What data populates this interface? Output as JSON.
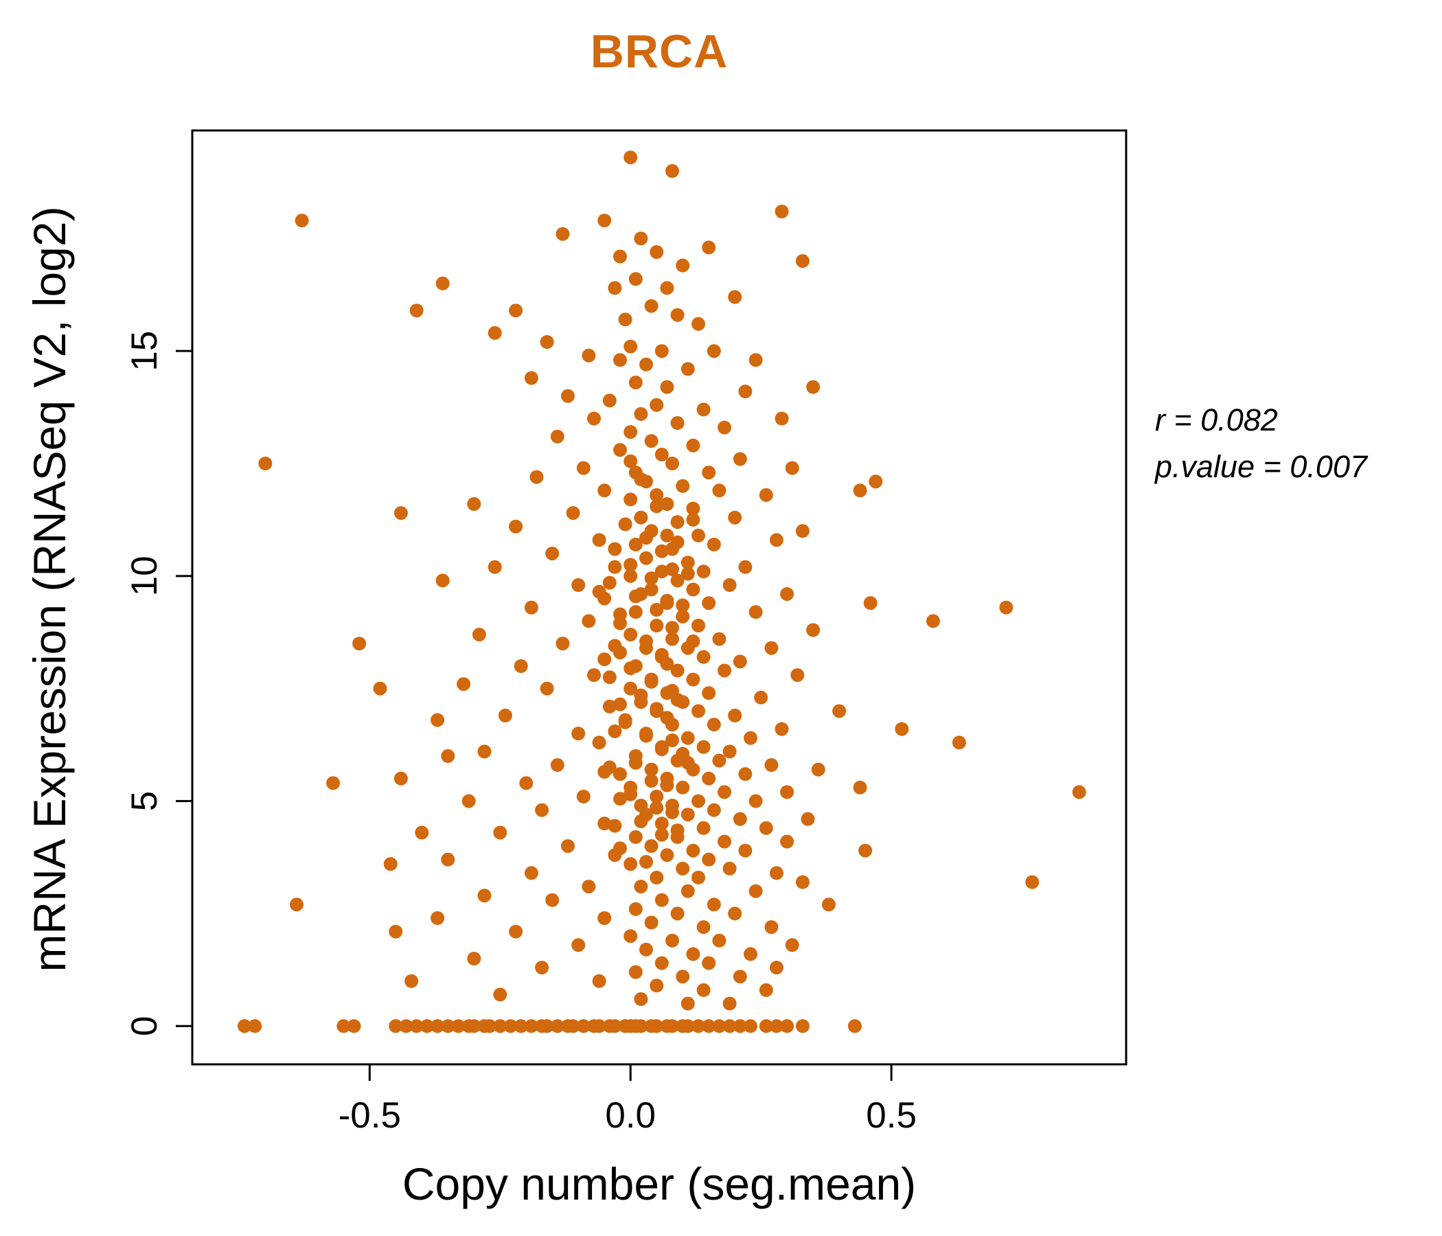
{
  "colors": {
    "accent": "#D2690E",
    "text": "#000000",
    "axis": "#000000"
  },
  "stats": {
    "line1": "r = 0.082",
    "line2": "p.value = 0.007"
  },
  "chart_data": {
    "type": "scatter",
    "title": "BRCA",
    "xlabel": "Copy number (seg.mean)",
    "ylabel": "mRNA Expression (RNASeq V2, log2)",
    "xlim": [
      -0.84,
      0.95
    ],
    "ylim": [
      -0.85,
      19.9
    ],
    "x_ticks": [
      -0.5,
      0.0,
      0.5
    ],
    "x_tick_labels": [
      "-0.5",
      "0.0",
      "0.5"
    ],
    "y_ticks": [
      0,
      5,
      10,
      15
    ],
    "y_tick_labels": [
      "0",
      "5",
      "10",
      "15"
    ],
    "grid": false,
    "legend": "none",
    "point_color": "#D2690E",
    "point_radius_px": 10,
    "r": 0.082,
    "p_value": 0.007,
    "annotations": [
      "r = 0.082",
      "p.value = 0.007"
    ],
    "points": [
      [
        0.0,
        19.3
      ],
      [
        0.08,
        19.0
      ],
      [
        -0.63,
        17.9
      ],
      [
        0.29,
        18.1
      ],
      [
        -0.05,
        17.9
      ],
      [
        0.02,
        17.5
      ],
      [
        -0.13,
        17.6
      ],
      [
        0.15,
        17.3
      ],
      [
        0.33,
        17.0
      ],
      [
        -0.02,
        17.1
      ],
      [
        0.05,
        17.2
      ],
      [
        0.1,
        16.9
      ],
      [
        -0.36,
        16.5
      ],
      [
        0.01,
        16.6
      ],
      [
        -0.03,
        16.4
      ],
      [
        0.07,
        16.4
      ],
      [
        0.2,
        16.2
      ],
      [
        -0.41,
        15.9
      ],
      [
        -0.22,
        15.9
      ],
      [
        0.04,
        16.0
      ],
      [
        0.09,
        15.8
      ],
      [
        -0.01,
        15.7
      ],
      [
        0.13,
        15.6
      ],
      [
        -0.26,
        15.4
      ],
      [
        -0.16,
        15.2
      ],
      [
        0.0,
        15.1
      ],
      [
        0.06,
        15.0
      ],
      [
        0.16,
        15.0
      ],
      [
        0.24,
        14.8
      ],
      [
        -0.08,
        14.9
      ],
      [
        -0.02,
        14.8
      ],
      [
        0.03,
        14.7
      ],
      [
        0.11,
        14.6
      ],
      [
        -0.19,
        14.4
      ],
      [
        0.01,
        14.3
      ],
      [
        0.07,
        14.2
      ],
      [
        0.22,
        14.1
      ],
      [
        0.35,
        14.2
      ],
      [
        -0.12,
        14.0
      ],
      [
        -0.04,
        13.9
      ],
      [
        0.05,
        13.8
      ],
      [
        0.14,
        13.7
      ],
      [
        0.02,
        13.6
      ],
      [
        -0.07,
        13.5
      ],
      [
        0.09,
        13.4
      ],
      [
        0.18,
        13.3
      ],
      [
        0.29,
        13.5
      ],
      [
        0.0,
        13.2
      ],
      [
        -0.14,
        13.1
      ],
      [
        0.04,
        13.0
      ],
      [
        0.12,
        12.9
      ],
      [
        -0.7,
        12.5
      ],
      [
        -0.02,
        12.8
      ],
      [
        0.06,
        12.7
      ],
      [
        0.21,
        12.6
      ],
      [
        0.08,
        12.5
      ],
      [
        -0.09,
        12.4
      ],
      [
        0.01,
        12.3
      ],
      [
        0.15,
        12.3
      ],
      [
        0.31,
        12.4
      ],
      [
        -0.18,
        12.2
      ],
      [
        0.03,
        12.1
      ],
      [
        0.1,
        12.0
      ],
      [
        -0.05,
        11.9
      ],
      [
        0.05,
        11.8
      ],
      [
        0.17,
        11.9
      ],
      [
        0.26,
        11.8
      ],
      [
        -0.3,
        11.6
      ],
      [
        -0.44,
        11.4
      ],
      [
        0.0,
        11.7
      ],
      [
        0.07,
        11.6
      ],
      [
        0.12,
        11.5
      ],
      [
        -0.11,
        11.4
      ],
      [
        0.02,
        11.3
      ],
      [
        0.09,
        11.2
      ],
      [
        0.2,
        11.3
      ],
      [
        0.44,
        11.9
      ],
      [
        0.47,
        12.1
      ],
      [
        -0.22,
        11.1
      ],
      [
        0.04,
        11.0
      ],
      [
        0.13,
        10.9
      ],
      [
        -0.06,
        10.8
      ],
      [
        0.01,
        10.7
      ],
      [
        0.08,
        10.6
      ],
      [
        0.16,
        10.7
      ],
      [
        0.28,
        10.8
      ],
      [
        0.33,
        11.0
      ],
      [
        -0.15,
        10.5
      ],
      [
        0.03,
        10.4
      ],
      [
        0.11,
        10.3
      ],
      [
        -0.26,
        10.2
      ],
      [
        -0.03,
        10.2
      ],
      [
        0.06,
        10.1
      ],
      [
        0.14,
        10.1
      ],
      [
        0.22,
        10.2
      ],
      [
        0.0,
        10.0
      ],
      [
        0.09,
        9.9
      ],
      [
        -0.36,
        9.9
      ],
      [
        -0.1,
        9.8
      ],
      [
        0.04,
        9.7
      ],
      [
        0.12,
        9.7
      ],
      [
        0.19,
        9.8
      ],
      [
        0.3,
        9.6
      ],
      [
        0.02,
        9.6
      ],
      [
        -0.05,
        9.5
      ],
      [
        0.07,
        9.4
      ],
      [
        0.15,
        9.4
      ],
      [
        0.46,
        9.4
      ],
      [
        0.58,
        9.0
      ],
      [
        0.72,
        9.3
      ],
      [
        -0.19,
        9.3
      ],
      [
        0.01,
        9.2
      ],
      [
        0.1,
        9.1
      ],
      [
        0.24,
        9.2
      ],
      [
        -0.08,
        9.0
      ],
      [
        0.05,
        8.9
      ],
      [
        0.13,
        8.9
      ],
      [
        0.35,
        8.8
      ],
      [
        -0.29,
        8.7
      ],
      [
        0.0,
        8.7
      ],
      [
        0.08,
        8.6
      ],
      [
        0.17,
        8.6
      ],
      [
        -0.13,
        8.5
      ],
      [
        0.03,
        8.4
      ],
      [
        0.11,
        8.4
      ],
      [
        0.27,
        8.4
      ],
      [
        -0.52,
        8.5
      ],
      [
        -0.48,
        7.5
      ],
      [
        -0.02,
        8.3
      ],
      [
        0.06,
        8.2
      ],
      [
        0.14,
        8.2
      ],
      [
        0.21,
        8.1
      ],
      [
        -0.21,
        8.0
      ],
      [
        0.01,
        8.0
      ],
      [
        0.09,
        7.9
      ],
      [
        0.18,
        7.9
      ],
      [
        0.32,
        7.8
      ],
      [
        -0.07,
        7.8
      ],
      [
        0.04,
        7.7
      ],
      [
        0.12,
        7.7
      ],
      [
        -0.32,
        7.6
      ],
      [
        -0.16,
        7.5
      ],
      [
        0.0,
        7.5
      ],
      [
        0.07,
        7.4
      ],
      [
        0.15,
        7.4
      ],
      [
        0.25,
        7.3
      ],
      [
        0.02,
        7.2
      ],
      [
        0.1,
        7.2
      ],
      [
        -0.04,
        7.1
      ],
      [
        0.05,
        7.0
      ],
      [
        0.13,
        7.0
      ],
      [
        0.2,
        6.9
      ],
      [
        0.4,
        7.0
      ],
      [
        -0.24,
        6.9
      ],
      [
        -0.37,
        6.8
      ],
      [
        -0.01,
        6.8
      ],
      [
        0.08,
        6.7
      ],
      [
        0.16,
        6.7
      ],
      [
        0.29,
        6.6
      ],
      [
        -0.1,
        6.5
      ],
      [
        0.03,
        6.5
      ],
      [
        0.11,
        6.4
      ],
      [
        0.23,
        6.4
      ],
      [
        0.52,
        6.6
      ],
      [
        0.63,
        6.3
      ],
      [
        -0.06,
        6.3
      ],
      [
        0.06,
        6.2
      ],
      [
        0.14,
        6.2
      ],
      [
        0.19,
        6.1
      ],
      [
        -0.28,
        6.1
      ],
      [
        -0.35,
        6.0
      ],
      [
        0.01,
        6.0
      ],
      [
        0.09,
        5.9
      ],
      [
        0.17,
        5.9
      ],
      [
        0.27,
        5.8
      ],
      [
        -0.14,
        5.8
      ],
      [
        0.04,
        5.7
      ],
      [
        0.12,
        5.7
      ],
      [
        0.22,
        5.6
      ],
      [
        0.36,
        5.7
      ],
      [
        -0.02,
        5.6
      ],
      [
        0.07,
        5.5
      ],
      [
        0.15,
        5.5
      ],
      [
        -0.44,
        5.5
      ],
      [
        -0.57,
        5.4
      ],
      [
        -0.2,
        5.4
      ],
      [
        0.0,
        5.3
      ],
      [
        0.1,
        5.3
      ],
      [
        0.18,
        5.2
      ],
      [
        0.3,
        5.2
      ],
      [
        0.44,
        5.3
      ],
      [
        0.86,
        5.2
      ],
      [
        -0.09,
        5.1
      ],
      [
        0.05,
        5.1
      ],
      [
        0.13,
        5.0
      ],
      [
        0.24,
        5.0
      ],
      [
        -0.31,
        5.0
      ],
      [
        0.02,
        4.9
      ],
      [
        0.08,
        4.9
      ],
      [
        0.16,
        4.8
      ],
      [
        -0.17,
        4.8
      ],
      [
        0.03,
        4.7
      ],
      [
        0.11,
        4.7
      ],
      [
        0.21,
        4.6
      ],
      [
        0.34,
        4.6
      ],
      [
        -0.05,
        4.5
      ],
      [
        0.06,
        4.5
      ],
      [
        0.14,
        4.4
      ],
      [
        0.26,
        4.4
      ],
      [
        -0.25,
        4.3
      ],
      [
        -0.4,
        4.3
      ],
      [
        0.01,
        4.2
      ],
      [
        0.09,
        4.2
      ],
      [
        0.18,
        4.1
      ],
      [
        0.3,
        4.1
      ],
      [
        -0.12,
        4.0
      ],
      [
        0.04,
        4.0
      ],
      [
        0.12,
        3.9
      ],
      [
        0.22,
        3.9
      ],
      [
        0.45,
        3.9
      ],
      [
        -0.03,
        3.8
      ],
      [
        0.07,
        3.8
      ],
      [
        0.15,
        3.7
      ],
      [
        -0.35,
        3.7
      ],
      [
        -0.46,
        3.6
      ],
      [
        0.0,
        3.6
      ],
      [
        0.1,
        3.5
      ],
      [
        0.19,
        3.5
      ],
      [
        0.28,
        3.4
      ],
      [
        -0.19,
        3.4
      ],
      [
        0.05,
        3.3
      ],
      [
        0.13,
        3.3
      ],
      [
        0.33,
        3.2
      ],
      [
        0.77,
        3.2
      ],
      [
        -0.08,
        3.1
      ],
      [
        0.02,
        3.1
      ],
      [
        0.11,
        3.0
      ],
      [
        0.24,
        3.0
      ],
      [
        -0.28,
        2.9
      ],
      [
        -0.15,
        2.8
      ],
      [
        0.06,
        2.8
      ],
      [
        0.16,
        2.7
      ],
      [
        0.38,
        2.7
      ],
      [
        -0.64,
        2.7
      ],
      [
        0.01,
        2.6
      ],
      [
        0.09,
        2.5
      ],
      [
        0.2,
        2.5
      ],
      [
        -0.37,
        2.4
      ],
      [
        -0.05,
        2.4
      ],
      [
        0.04,
        2.3
      ],
      [
        0.14,
        2.2
      ],
      [
        0.27,
        2.2
      ],
      [
        -0.45,
        2.1
      ],
      [
        -0.22,
        2.1
      ],
      [
        0.0,
        2.0
      ],
      [
        0.08,
        1.9
      ],
      [
        0.17,
        1.9
      ],
      [
        0.31,
        1.8
      ],
      [
        -0.1,
        1.8
      ],
      [
        0.03,
        1.7
      ],
      [
        0.12,
        1.6
      ],
      [
        0.23,
        1.6
      ],
      [
        -0.3,
        1.5
      ],
      [
        0.06,
        1.4
      ],
      [
        0.15,
        1.4
      ],
      [
        0.28,
        1.3
      ],
      [
        -0.17,
        1.3
      ],
      [
        0.01,
        1.2
      ],
      [
        0.1,
        1.1
      ],
      [
        0.21,
        1.1
      ],
      [
        -0.42,
        1.0
      ],
      [
        -0.06,
        1.0
      ],
      [
        0.05,
        0.9
      ],
      [
        0.14,
        0.8
      ],
      [
        0.26,
        0.8
      ],
      [
        -0.25,
        0.7
      ],
      [
        0.02,
        0.6
      ],
      [
        0.11,
        0.5
      ],
      [
        0.19,
        0.5
      ],
      [
        0.0,
        12.55
      ],
      [
        0.02,
        12.15
      ],
      [
        0.05,
        11.55
      ],
      [
        -0.01,
        11.15
      ],
      [
        0.03,
        10.85
      ],
      [
        0.06,
        10.55
      ],
      [
        0.0,
        10.25
      ],
      [
        0.04,
        9.95
      ],
      [
        0.01,
        9.55
      ],
      [
        0.05,
        9.25
      ],
      [
        -0.02,
        8.95
      ],
      [
        0.03,
        8.55
      ],
      [
        0.06,
        8.25
      ],
      [
        0.0,
        7.95
      ],
      [
        0.04,
        7.65
      ],
      [
        0.02,
        7.35
      ],
      [
        0.05,
        7.05
      ],
      [
        -0.01,
        6.75
      ],
      [
        0.03,
        6.45
      ],
      [
        0.06,
        6.15
      ],
      [
        0.01,
        5.85
      ],
      [
        0.04,
        5.45
      ],
      [
        0.0,
        5.15
      ],
      [
        0.05,
        4.85
      ],
      [
        0.02,
        4.55
      ],
      [
        0.06,
        4.25
      ],
      [
        -0.02,
        3.95
      ],
      [
        0.03,
        3.65
      ],
      [
        0.07,
        10.9
      ],
      [
        -0.03,
        10.6
      ],
      [
        0.08,
        10.15
      ],
      [
        -0.04,
        9.85
      ],
      [
        0.07,
        9.45
      ],
      [
        -0.02,
        9.15
      ],
      [
        0.08,
        8.85
      ],
      [
        -0.03,
        8.45
      ],
      [
        0.07,
        8.05
      ],
      [
        -0.04,
        7.75
      ],
      [
        0.08,
        7.45
      ],
      [
        -0.02,
        7.15
      ],
      [
        0.07,
        6.85
      ],
      [
        -0.03,
        6.55
      ],
      [
        0.08,
        6.35
      ],
      [
        -0.04,
        5.75
      ],
      [
        0.07,
        5.35
      ],
      [
        -0.02,
        5.05
      ],
      [
        0.08,
        4.75
      ],
      [
        -0.03,
        4.45
      ],
      [
        0.09,
        10.75
      ],
      [
        0.1,
        9.35
      ],
      [
        -0.05,
        8.15
      ],
      [
        0.09,
        7.25
      ],
      [
        0.1,
        6.05
      ],
      [
        -0.05,
        5.65
      ],
      [
        0.09,
        4.35
      ],
      [
        0.11,
        5.85
      ],
      [
        0.12,
        8.55
      ],
      [
        -0.06,
        9.65
      ],
      [
        0.11,
        10.05
      ],
      [
        0.12,
        11.25
      ],
      [
        -0.74,
        0
      ],
      [
        -0.72,
        0
      ],
      [
        -0.55,
        0
      ],
      [
        -0.53,
        0
      ],
      [
        -0.45,
        0
      ],
      [
        -0.43,
        0
      ],
      [
        -0.41,
        0
      ],
      [
        -0.39,
        0
      ],
      [
        -0.37,
        0
      ],
      [
        -0.35,
        0
      ],
      [
        -0.33,
        0
      ],
      [
        -0.31,
        0
      ],
      [
        -0.3,
        0
      ],
      [
        -0.28,
        0
      ],
      [
        -0.27,
        0
      ],
      [
        -0.25,
        0
      ],
      [
        -0.23,
        0
      ],
      [
        -0.21,
        0
      ],
      [
        -0.19,
        0
      ],
      [
        -0.17,
        0
      ],
      [
        -0.16,
        0
      ],
      [
        -0.14,
        0
      ],
      [
        -0.12,
        0
      ],
      [
        -0.11,
        0
      ],
      [
        -0.09,
        0
      ],
      [
        -0.07,
        0
      ],
      [
        -0.06,
        0
      ],
      [
        -0.04,
        0
      ],
      [
        -0.03,
        0
      ],
      [
        -0.01,
        0
      ],
      [
        0.0,
        0
      ],
      [
        0.01,
        0
      ],
      [
        0.02,
        0
      ],
      [
        0.04,
        0
      ],
      [
        0.05,
        0
      ],
      [
        0.07,
        0
      ],
      [
        0.08,
        0
      ],
      [
        0.1,
        0
      ],
      [
        0.11,
        0
      ],
      [
        0.13,
        0
      ],
      [
        0.15,
        0
      ],
      [
        0.17,
        0
      ],
      [
        0.19,
        0
      ],
      [
        0.21,
        0
      ],
      [
        0.23,
        0
      ],
      [
        0.26,
        0
      ],
      [
        0.28,
        0
      ],
      [
        0.3,
        0
      ],
      [
        0.33,
        0
      ],
      [
        0.43,
        0
      ]
    ]
  }
}
